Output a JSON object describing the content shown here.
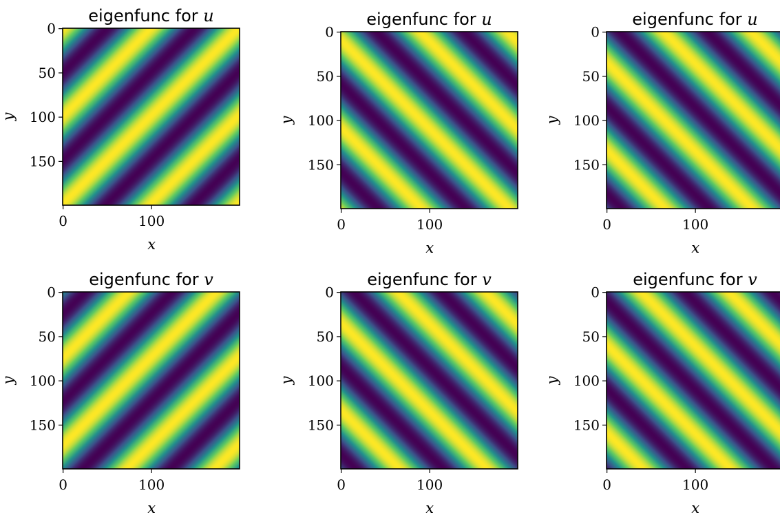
{
  "chart_data": [
    {
      "type": "heatmap",
      "title_prefix": "eigenfunc for ",
      "title_var": "u",
      "xlabel": "x",
      "ylabel": "y",
      "xlim": [
        0,
        199
      ],
      "ylim": [
        199,
        0
      ],
      "xticks": [
        0,
        100
      ],
      "yticks": [
        0,
        50,
        100,
        150
      ],
      "pattern": {
        "kx": 1,
        "ky": 1,
        "wavelength": 70,
        "phase": 0.0
      },
      "colormap": "viridis"
    },
    {
      "type": "heatmap",
      "title_prefix": "eigenfunc for ",
      "title_var": "u",
      "xlabel": "x",
      "ylabel": "y",
      "xlim": [
        0,
        199
      ],
      "ylim": [
        199,
        0
      ],
      "xticks": [
        0,
        100
      ],
      "yticks": [
        0,
        50,
        100,
        150
      ],
      "pattern": {
        "kx": 1,
        "ky": -1,
        "wavelength": 70,
        "phase": 0.6
      },
      "colormap": "viridis"
    },
    {
      "type": "heatmap",
      "title_prefix": "eigenfunc for ",
      "title_var": "u",
      "xlabel": "x",
      "ylabel": "y",
      "xlim": [
        0,
        199
      ],
      "ylim": [
        199,
        0
      ],
      "xticks": [
        0,
        100
      ],
      "yticks": [
        0,
        50,
        100,
        150
      ],
      "pattern": {
        "kx": 1,
        "ky": -1,
        "wavelength": 70,
        "phase": 2.2
      },
      "colormap": "viridis"
    },
    {
      "type": "heatmap",
      "title_prefix": "eigenfunc for ",
      "title_var": "v",
      "xlabel": "x",
      "ylabel": "y",
      "xlim": [
        0,
        199
      ],
      "ylim": [
        199,
        0
      ],
      "xticks": [
        0,
        100
      ],
      "yticks": [
        0,
        50,
        100,
        150
      ],
      "pattern": {
        "kx": 1,
        "ky": 1,
        "wavelength": 70,
        "phase": 1.6
      },
      "colormap": "viridis"
    },
    {
      "type": "heatmap",
      "title_prefix": "eigenfunc for ",
      "title_var": "v",
      "xlabel": "x",
      "ylabel": "y",
      "xlim": [
        0,
        199
      ],
      "ylim": [
        199,
        0
      ],
      "xticks": [
        0,
        100
      ],
      "yticks": [
        0,
        50,
        100,
        150
      ],
      "pattern": {
        "kx": 1,
        "ky": -1,
        "wavelength": 70,
        "phase": 2.2
      },
      "colormap": "viridis"
    },
    {
      "type": "heatmap",
      "title_prefix": "eigenfunc for ",
      "title_var": "v",
      "xlabel": "x",
      "ylabel": "y",
      "xlim": [
        0,
        199
      ],
      "ylim": [
        199,
        0
      ],
      "xticks": [
        0,
        100
      ],
      "yticks": [
        0,
        50,
        100,
        150
      ],
      "pattern": {
        "kx": 1,
        "ky": -1,
        "wavelength": 70,
        "phase": 3.8
      },
      "colormap": "viridis"
    }
  ],
  "colors": {
    "viridis": [
      "#440154",
      "#3b528b",
      "#21918c",
      "#5ec962",
      "#fde725"
    ],
    "frame": "#000000"
  }
}
